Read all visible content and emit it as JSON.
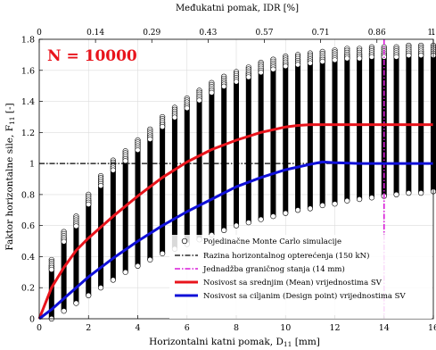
{
  "chart_data": {
    "type": "scatter",
    "title": "",
    "xlabel": "Horizontalni katni pomak, D",
    "xlabel_sub": "11",
    "xlabel_unit": " [mm]",
    "ylabel": "Faktor horizontalne sile, F",
    "ylabel_sub": "11",
    "ylabel_unit": " [-]",
    "top_xlabel": "Međukatni pomak, IDR [%]",
    "annotation": "N = 10000",
    "annotation_color": "#e8141c",
    "xlim": [
      0,
      16
    ],
    "ylim": [
      0,
      1.8
    ],
    "xticks": [
      0,
      2,
      4,
      6,
      8,
      10,
      12,
      14,
      16
    ],
    "yticks": [
      0,
      0.2,
      0.4,
      0.6,
      0.8,
      1,
      1.2,
      1.4,
      1.6,
      1.8
    ],
    "top_ticks": [
      {
        "x": 0,
        "label": "0"
      },
      {
        "x": 2.285,
        "label": "0.14"
      },
      {
        "x": 4.57,
        "label": "0.29"
      },
      {
        "x": 6.855,
        "label": "0.43"
      },
      {
        "x": 9.14,
        "label": "0.57"
      },
      {
        "x": 11.425,
        "label": "0.71"
      },
      {
        "x": 13.71,
        "label": "0.86"
      },
      {
        "x": 15.995,
        "label": "1"
      },
      {
        "x": 16,
        "label": "1."
      }
    ],
    "grid": true,
    "legend_position": "bottom-right",
    "scatter_columns": [
      {
        "x": 0.5,
        "ymin": 0.0,
        "ymax": 0.38
      },
      {
        "x": 1.0,
        "ymin": 0.05,
        "ymax": 0.56
      },
      {
        "x": 1.5,
        "ymin": 0.1,
        "ymax": 0.66
      },
      {
        "x": 2.0,
        "ymin": 0.15,
        "ymax": 0.8
      },
      {
        "x": 2.5,
        "ymin": 0.2,
        "ymax": 0.92
      },
      {
        "x": 3.0,
        "ymin": 0.25,
        "ymax": 1.02
      },
      {
        "x": 3.5,
        "ymin": 0.3,
        "ymax": 1.08
      },
      {
        "x": 4.0,
        "ymin": 0.34,
        "ymax": 1.15
      },
      {
        "x": 4.5,
        "ymin": 0.38,
        "ymax": 1.22
      },
      {
        "x": 5.0,
        "ymin": 0.42,
        "ymax": 1.3
      },
      {
        "x": 5.5,
        "ymin": 0.45,
        "ymax": 1.36
      },
      {
        "x": 6.0,
        "ymin": 0.48,
        "ymax": 1.42
      },
      {
        "x": 6.5,
        "ymin": 0.51,
        "ymax": 1.47
      },
      {
        "x": 7.0,
        "ymin": 0.54,
        "ymax": 1.52
      },
      {
        "x": 7.5,
        "ymin": 0.57,
        "ymax": 1.56
      },
      {
        "x": 8.0,
        "ymin": 0.6,
        "ymax": 1.59
      },
      {
        "x": 8.5,
        "ymin": 0.62,
        "ymax": 1.62
      },
      {
        "x": 9.0,
        "ymin": 0.64,
        "ymax": 1.65
      },
      {
        "x": 9.5,
        "ymin": 0.66,
        "ymax": 1.67
      },
      {
        "x": 10.0,
        "ymin": 0.68,
        "ymax": 1.69
      },
      {
        "x": 10.5,
        "ymin": 0.7,
        "ymax": 1.7
      },
      {
        "x": 11.0,
        "ymin": 0.71,
        "ymax": 1.71
      },
      {
        "x": 11.5,
        "ymin": 0.73,
        "ymax": 1.72
      },
      {
        "x": 12.0,
        "ymin": 0.74,
        "ymax": 1.73
      },
      {
        "x": 12.5,
        "ymin": 0.76,
        "ymax": 1.74
      },
      {
        "x": 13.0,
        "ymin": 0.77,
        "ymax": 1.74
      },
      {
        "x": 13.5,
        "ymin": 0.78,
        "ymax": 1.75
      },
      {
        "x": 14.0,
        "ymin": 0.79,
        "ymax": 1.75
      },
      {
        "x": 14.5,
        "ymin": 0.8,
        "ymax": 1.75
      },
      {
        "x": 15.0,
        "ymin": 0.81,
        "ymax": 1.76
      },
      {
        "x": 15.5,
        "ymin": 0.81,
        "ymax": 1.76
      },
      {
        "x": 16.0,
        "ymin": 0.82,
        "ymax": 1.76
      }
    ],
    "series": [
      {
        "name": "Razina horizontalnog opterećenja (150 kN)",
        "type": "hline",
        "y": 1.0,
        "color": "#000000",
        "dash": "dashdot"
      },
      {
        "name": "Jednadžba graničnog stanja (14 mm)",
        "type": "vline",
        "x": 14.0,
        "color": "#d91ad9",
        "dash": "dashdot"
      },
      {
        "name": "Nosivost sa srednjim (Mean) vrijednostima SV",
        "type": "line",
        "color": "#e8141c",
        "x": [
          0,
          0.5,
          1,
          1.5,
          2,
          3,
          4,
          5,
          6,
          7,
          8,
          9,
          10,
          10.5,
          11,
          12,
          13,
          14,
          15,
          16
        ],
        "y": [
          0,
          0.2,
          0.33,
          0.44,
          0.52,
          0.66,
          0.79,
          0.91,
          1.01,
          1.09,
          1.15,
          1.2,
          1.235,
          1.245,
          1.25,
          1.25,
          1.25,
          1.25,
          1.25,
          1.25
        ]
      },
      {
        "name": "Nosivost sa ciljanim (Design point) vrijednostima SV",
        "type": "line",
        "color": "#1010d8",
        "x": [
          0,
          0.5,
          1,
          2,
          3,
          4,
          5,
          6,
          7,
          8,
          9,
          10,
          11,
          11.5,
          12,
          13,
          14,
          15,
          16
        ],
        "y": [
          0,
          0.06,
          0.13,
          0.27,
          0.39,
          0.5,
          0.6,
          0.69,
          0.77,
          0.85,
          0.91,
          0.96,
          0.995,
          1.01,
          1.005,
          1.0,
          1.0,
          1.0,
          1.0
        ]
      }
    ],
    "legend": {
      "scatter_label": "Pojedinačne Monte Carlo simulacije"
    }
  }
}
